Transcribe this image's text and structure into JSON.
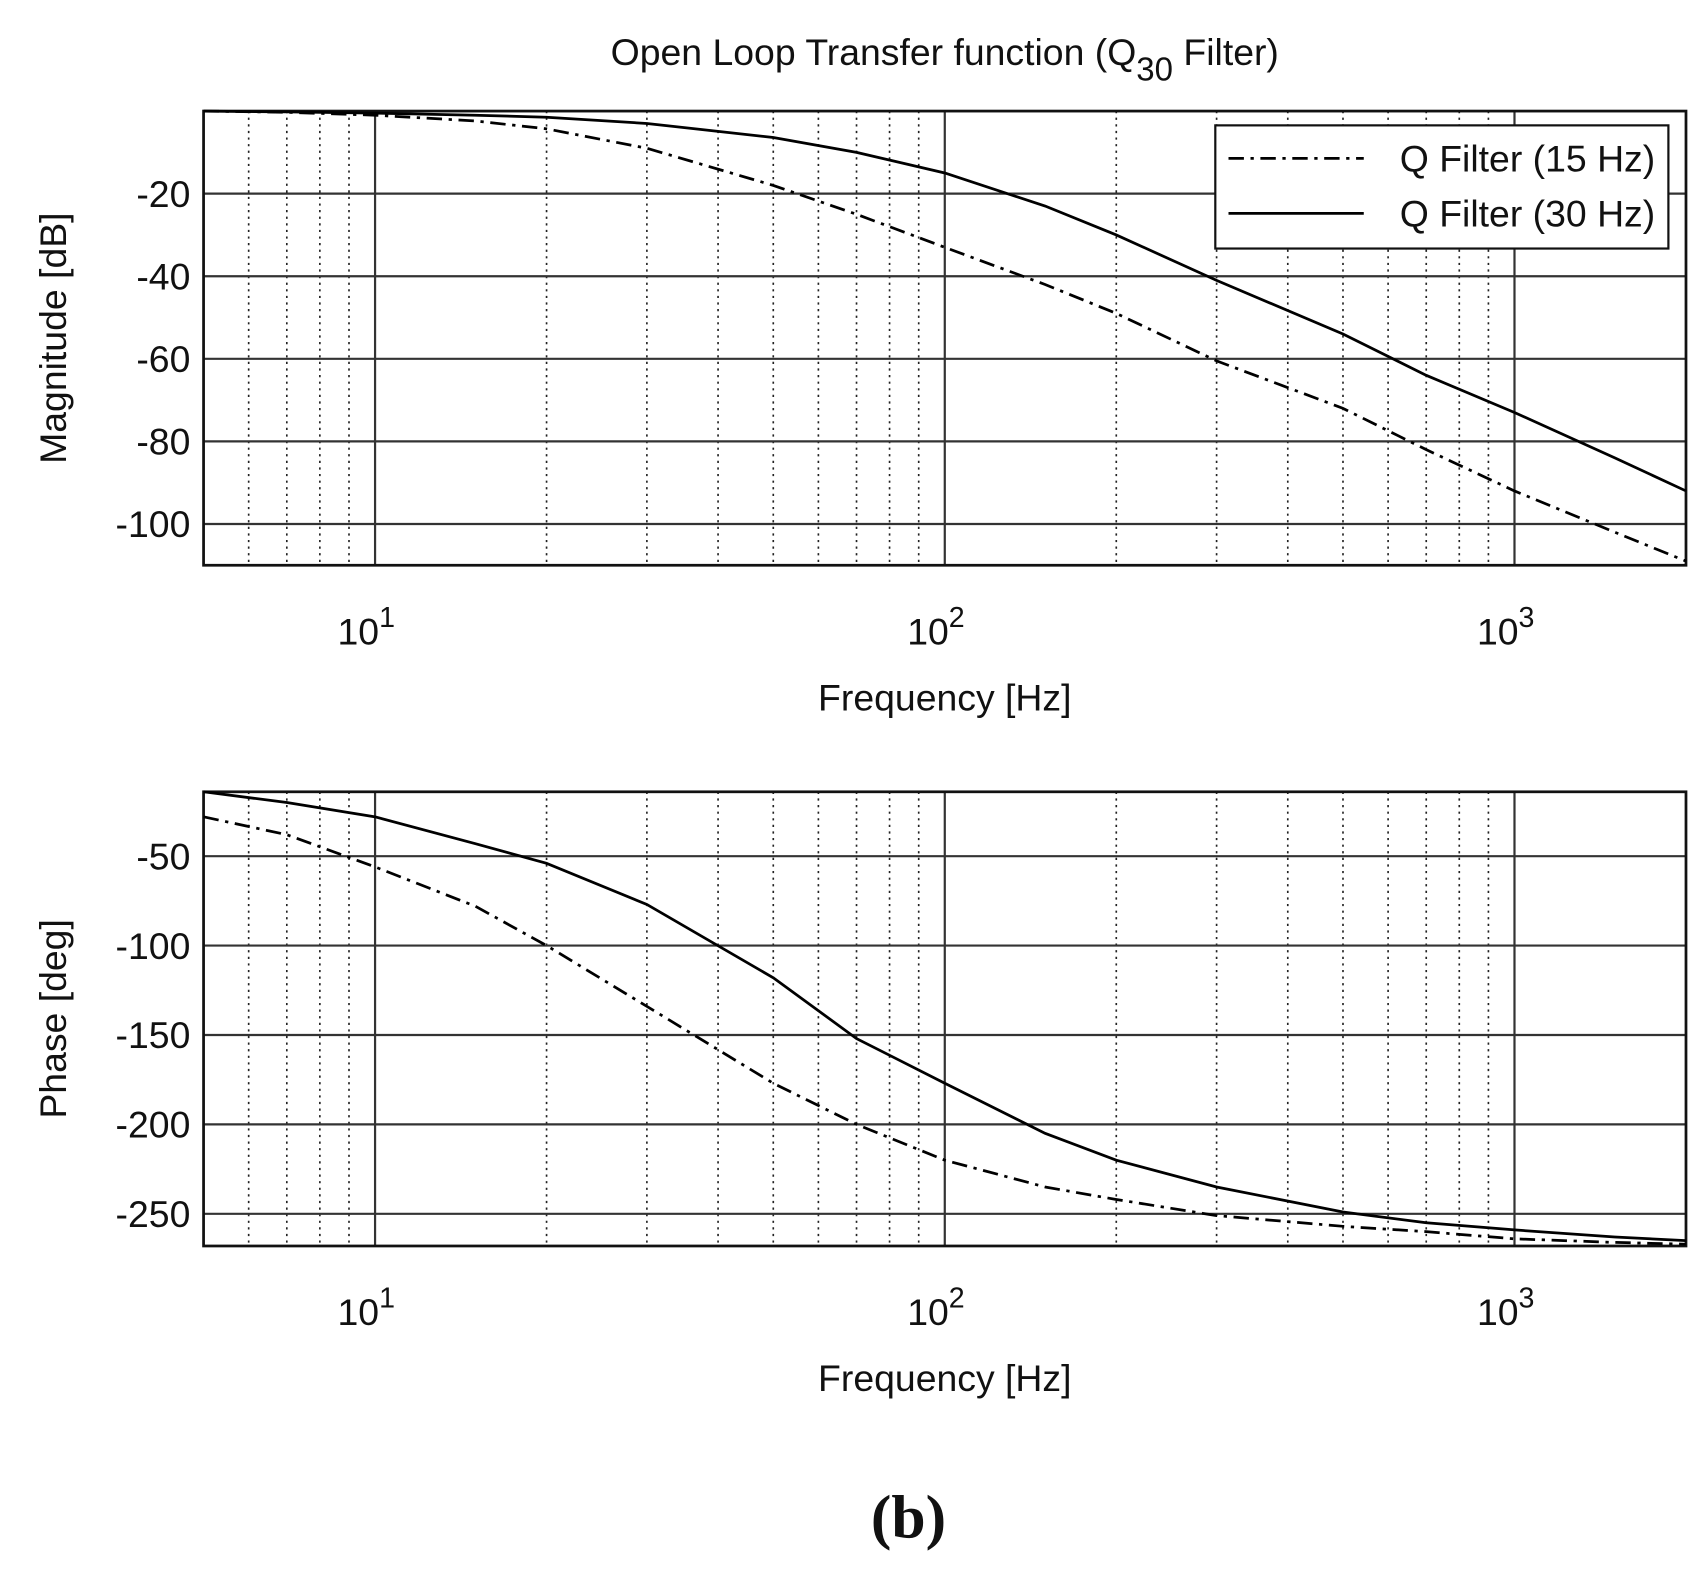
{
  "chart_data": [
    {
      "type": "line",
      "title": {
        "main": "Open Loop Transfer function (Q",
        "subscript": "30",
        "rest": " Filter)"
      },
      "xlabel": "Frequency [Hz]",
      "ylabel": "Magnitude [dB]",
      "xscale": "log",
      "grid": true,
      "legend": "upper right",
      "x": [
        5,
        7,
        10,
        15,
        20,
        30,
        50,
        70,
        100,
        150,
        200,
        300,
        500,
        700,
        1000,
        1500,
        2000
      ],
      "xlim": [
        5,
        2000
      ],
      "xticks": [
        {
          "value": 10,
          "label": "10",
          "exponent": "1"
        },
        {
          "value": 100,
          "label": "10",
          "exponent": "2"
        },
        {
          "value": 1000,
          "label": "10",
          "exponent": "3"
        }
      ],
      "minor_xticks": [
        6,
        7,
        8,
        9,
        20,
        30,
        40,
        50,
        60,
        70,
        80,
        90,
        200,
        300,
        400,
        500,
        600,
        700,
        800,
        900
      ],
      "ylim": [
        -110,
        0
      ],
      "yticks": [
        -100,
        -80,
        -60,
        -40,
        -20
      ],
      "series": [
        {
          "name": "Q Filter (15 Hz)",
          "color": "#000000",
          "linestyle": "dashdot",
          "values": [
            0,
            -0.3,
            -1,
            -2.4,
            -4.3,
            -9,
            -18,
            -25,
            -33,
            -42,
            -49,
            -60.5,
            -72,
            -82,
            -92,
            -102,
            -109
          ]
        },
        {
          "name": "Q Filter (30 Hz)",
          "color": "#000000",
          "linestyle": "solid",
          "values": [
            0,
            -0.2,
            -0.5,
            -1,
            -1.5,
            -3,
            -6.4,
            -10,
            -15,
            -23,
            -30,
            -41,
            -54,
            -64,
            -73,
            -84,
            -92
          ]
        }
      ]
    },
    {
      "type": "line",
      "xlabel": "Frequency [Hz]",
      "ylabel": "Phase [deg]",
      "xscale": "log",
      "grid": true,
      "x": [
        5,
        7,
        10,
        15,
        20,
        30,
        50,
        70,
        100,
        150,
        200,
        300,
        500,
        700,
        1000,
        1500,
        2000
      ],
      "xlim": [
        5,
        2000
      ],
      "xticks": [
        {
          "value": 10,
          "label": "10",
          "exponent": "1"
        },
        {
          "value": 100,
          "label": "10",
          "exponent": "2"
        },
        {
          "value": 1000,
          "label": "10",
          "exponent": "3"
        }
      ],
      "minor_xticks": [
        6,
        7,
        8,
        9,
        20,
        30,
        40,
        50,
        60,
        70,
        80,
        90,
        200,
        300,
        400,
        500,
        600,
        700,
        800,
        900
      ],
      "ylim": [
        -268,
        -14
      ],
      "yticks": [
        -250,
        -200,
        -150,
        -100,
        -50
      ],
      "series": [
        {
          "color": "#000000",
          "linestyle": "dashdot",
          "values": [
            -28,
            -38,
            -56,
            -78,
            -100,
            -134,
            -177,
            -200,
            -220,
            -235,
            -242,
            -251,
            -257,
            -260,
            -264,
            -266,
            -267
          ]
        },
        {
          "color": "#000000",
          "linestyle": "solid",
          "values": [
            -14,
            -20,
            -28,
            -43,
            -54,
            -77,
            -118,
            -152,
            -177,
            -205,
            -220,
            -235,
            -249,
            -255,
            -259,
            -263,
            -265
          ]
        }
      ]
    }
  ],
  "caption": "(b)"
}
